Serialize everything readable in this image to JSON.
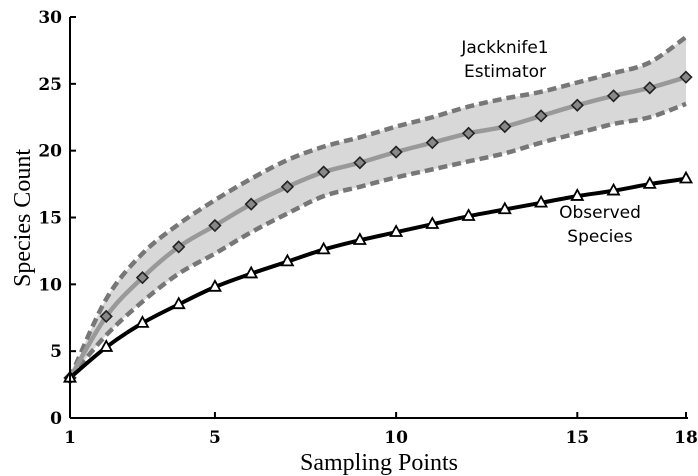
{
  "chart_data": {
    "type": "line",
    "xlabel": "Sampling Points",
    "ylabel": "Species Count",
    "xlim": [
      1,
      18
    ],
    "ylim": [
      0,
      30
    ],
    "x_ticks": [
      1,
      5,
      10,
      15,
      18
    ],
    "y_ticks": [
      0,
      5,
      10,
      15,
      20,
      25,
      30
    ],
    "grid": false,
    "annotations": [
      {
        "lines": [
          "Jackknife1",
          "Estimator"
        ],
        "series": "jackknife1"
      },
      {
        "lines": [
          "Observed",
          "Species"
        ],
        "series": "observed"
      }
    ],
    "x": [
      1,
      2,
      3,
      4,
      5,
      6,
      7,
      8,
      9,
      10,
      11,
      12,
      13,
      14,
      15,
      16,
      17,
      18
    ],
    "series": [
      {
        "key": "jackknife1",
        "name": "Jackknife1 Estimator",
        "marker": "diamond",
        "line_color": "#999999",
        "marker_fill": "#888888",
        "values": [
          3.0,
          7.6,
          10.5,
          12.8,
          14.4,
          16.0,
          17.3,
          18.4,
          19.1,
          19.9,
          20.6,
          21.3,
          21.8,
          22.6,
          23.4,
          24.1,
          24.7,
          25.5
        ],
        "ci_upper": [
          3.0,
          8.9,
          12.3,
          14.5,
          16.3,
          17.9,
          19.3,
          20.3,
          21.0,
          21.8,
          22.5,
          23.3,
          23.9,
          24.4,
          25.1,
          25.8,
          26.6,
          28.5
        ],
        "ci_lower": [
          3.0,
          6.2,
          8.7,
          10.8,
          12.3,
          13.9,
          15.3,
          16.6,
          17.3,
          18.0,
          18.6,
          19.2,
          19.8,
          20.6,
          21.3,
          22.0,
          22.5,
          23.5
        ],
        "band_color": "#d8d8d8",
        "band_edge_color": "#777777"
      },
      {
        "key": "observed",
        "name": "Observed Species",
        "marker": "triangle",
        "line_color": "#000000",
        "marker_fill": "#ffffff",
        "values": [
          3.0,
          5.3,
          7.1,
          8.5,
          9.8,
          10.8,
          11.7,
          12.6,
          13.3,
          13.9,
          14.5,
          15.1,
          15.6,
          16.1,
          16.6,
          17.0,
          17.5,
          17.9
        ]
      }
    ]
  }
}
